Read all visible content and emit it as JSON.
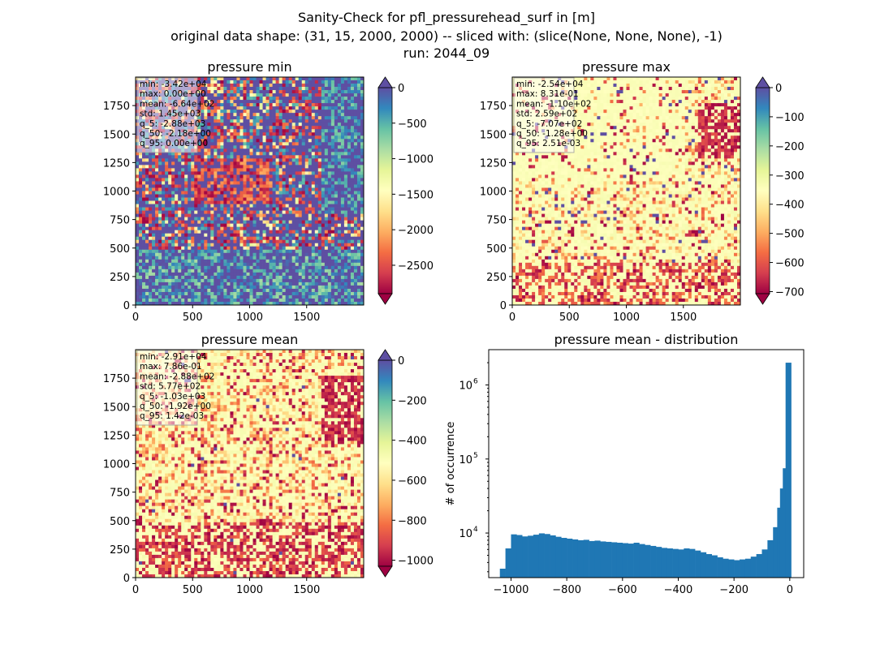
{
  "figure": {
    "title_lines": [
      "Sanity-Check for pfl_pressurehead_surf in [m]",
      "original data shape: (31, 15, 2000, 2000) -- sliced with: (slice(None, None, None), -1)",
      "run: 2044_09"
    ]
  },
  "chart_data": [
    {
      "type": "heatmap",
      "title": "pressure min",
      "xlabel": "",
      "ylabel": "",
      "xlim": [
        0,
        2000
      ],
      "ylim": [
        0,
        2000
      ],
      "x_ticks": [
        "0",
        "500",
        "1000",
        "1500"
      ],
      "y_ticks": [
        "0",
        "250",
        "500",
        "750",
        "1000",
        "1250",
        "1500",
        "1750"
      ],
      "colormap": "Spectral",
      "colorbar": {
        "range": [
          -2900,
          0
        ],
        "extend": "both",
        "ticks": [
          "0",
          "−500",
          "−1000",
          "−1500",
          "−2000",
          "−2500"
        ]
      },
      "stats": [
        "min: -3.42e+04",
        "max: 0.00e+00",
        "mean: -6.64e+02",
        "std: 1.45e+03",
        "q_5: -2.88e+03",
        "q_50: -2.18e+00",
        "q_95: 0.00e+00"
      ]
    },
    {
      "type": "heatmap",
      "title": "pressure max",
      "xlabel": "",
      "ylabel": "",
      "xlim": [
        0,
        2000
      ],
      "ylim": [
        0,
        2000
      ],
      "x_ticks": [
        "0",
        "500",
        "1000",
        "1500"
      ],
      "y_ticks": [
        "0",
        "250",
        "500",
        "750",
        "1000",
        "1250",
        "1500",
        "1750"
      ],
      "colormap": "Spectral",
      "colorbar": {
        "range": [
          -707,
          0
        ],
        "extend": "both",
        "ticks": [
          "0",
          "−100",
          "−200",
          "−300",
          "−400",
          "−500",
          "−600",
          "−700"
        ]
      },
      "stats": [
        "min: -2.54e+04",
        "max: 8.31e-01",
        "mean: -1.10e+02",
        "std: 2.59e+02",
        "q_5: -7.07e+02",
        "q_50: -1.28e+00",
        "q_95: 2.51e-03"
      ]
    },
    {
      "type": "heatmap",
      "title": "pressure mean",
      "xlabel": "",
      "ylabel": "",
      "xlim": [
        0,
        2000
      ],
      "ylim": [
        0,
        2000
      ],
      "x_ticks": [
        "0",
        "500",
        "1000",
        "1500"
      ],
      "y_ticks": [
        "0",
        "250",
        "500",
        "750",
        "1000",
        "1250",
        "1500",
        "1750"
      ],
      "colormap": "Spectral",
      "colorbar": {
        "range": [
          -1030,
          0
        ],
        "extend": "both",
        "ticks": [
          "0",
          "−200",
          "−400",
          "−600",
          "−800",
          "−1000"
        ]
      },
      "stats": [
        "min: -2.91e+04",
        "max: 7.86e-01",
        "mean: -2.88e+02",
        "std: 5.77e+02",
        "q_5: -1.03e+03",
        "q_50: -1.92e+00",
        "q_95: 1.42e-03"
      ]
    },
    {
      "type": "bar",
      "title": "pressure mean - distribution",
      "xlabel": "",
      "ylabel": "# of occurrence",
      "yscale": "log",
      "xlim": [
        -1080,
        50
      ],
      "ylim": [
        2500,
        3000000
      ],
      "x_ticks": [
        -1000,
        -800,
        -600,
        -400,
        -200,
        0
      ],
      "x_tick_labels": [
        "−1000",
        "−800",
        "−600",
        "−400",
        "−200",
        "0"
      ],
      "y_ticks": [
        10000,
        100000,
        1000000
      ],
      "y_tick_labels": [
        "10",
        "10",
        "10"
      ],
      "y_tick_exponents": [
        "4",
        "5",
        "6"
      ],
      "bar_color": "#1f77b4",
      "bins": [
        [
          -1030,
          3300
        ],
        [
          -1010,
          6200
        ],
        [
          -990,
          9600
        ],
        [
          -970,
          9400
        ],
        [
          -950,
          9000
        ],
        [
          -930,
          9200
        ],
        [
          -910,
          9500
        ],
        [
          -890,
          9900
        ],
        [
          -870,
          9700
        ],
        [
          -850,
          9300
        ],
        [
          -830,
          8900
        ],
        [
          -810,
          8600
        ],
        [
          -790,
          8400
        ],
        [
          -770,
          8200
        ],
        [
          -750,
          8000
        ],
        [
          -730,
          8100
        ],
        [
          -710,
          7800
        ],
        [
          -690,
          7900
        ],
        [
          -670,
          7700
        ],
        [
          -650,
          7600
        ],
        [
          -630,
          7500
        ],
        [
          -610,
          7400
        ],
        [
          -590,
          7300
        ],
        [
          -570,
          7200
        ],
        [
          -550,
          7400
        ],
        [
          -530,
          7100
        ],
        [
          -510,
          6900
        ],
        [
          -490,
          6700
        ],
        [
          -470,
          6500
        ],
        [
          -450,
          6300
        ],
        [
          -430,
          6200
        ],
        [
          -410,
          6100
        ],
        [
          -390,
          6000
        ],
        [
          -370,
          6200
        ],
        [
          -350,
          6100
        ],
        [
          -330,
          5800
        ],
        [
          -310,
          5500
        ],
        [
          -290,
          5200
        ],
        [
          -270,
          5000
        ],
        [
          -250,
          4700
        ],
        [
          -230,
          4500
        ],
        [
          -210,
          4400
        ],
        [
          -190,
          4300
        ],
        [
          -170,
          4400
        ],
        [
          -150,
          4500
        ],
        [
          -130,
          4800
        ],
        [
          -110,
          5200
        ],
        [
          -90,
          6000
        ],
        [
          -70,
          8000
        ],
        [
          -50,
          12000
        ],
        [
          -35,
          22000
        ],
        [
          -25,
          40000
        ],
        [
          -15,
          75000
        ],
        [
          -5,
          2000000
        ]
      ],
      "bin_width": 20
    }
  ]
}
